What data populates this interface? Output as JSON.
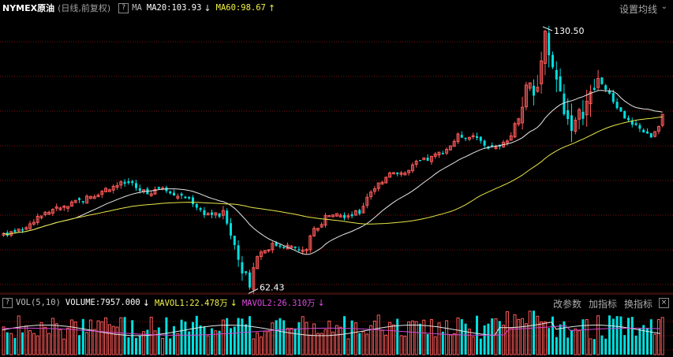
{
  "header": {
    "symbol": "NYMEX原油",
    "mode": "(日线,前复权)",
    "help_icon": "question-mark-box-icon",
    "ma_label": "MA",
    "ma20": "MA20:103.93",
    "ma20_arrow": "↓",
    "ma60": "MA60:98.67",
    "ma60_arrow": "↑",
    "settings": "设置均线"
  },
  "annotations": {
    "high": "130.50",
    "low": "62.43"
  },
  "volume_header": {
    "help_icon": "question-mark-box-icon",
    "vol_label": "VOL(5,10)",
    "volume": "VOLUME:7957.000",
    "volume_arrow": "↓",
    "mavol1": "MAVOL1:22.478万",
    "mavol1_arrow": "↓",
    "mavol2": "MAVOL2:26.310万",
    "mavol2_arrow": "↓",
    "btn_change": "改参数",
    "btn_add": "加指标",
    "btn_switch": "换指标",
    "close_icon": "close-box-icon"
  },
  "colors": {
    "up": "#ff5a5a",
    "down": "#00e0e0",
    "ma20": "#e6e6e6",
    "ma60": "#e6e64a",
    "mavol1": "#e6e6e6",
    "mavol2": "#d24ad2",
    "grid": "#7a1212"
  },
  "chart_data": {
    "type": "candlestick",
    "price_range": [
      60,
      133
    ],
    "high": 130.5,
    "low": 62.43,
    "series": [
      {
        "name": "MA20",
        "value": 103.93
      },
      {
        "name": "MA60",
        "value": 98.67
      },
      {
        "name": "VOLUME",
        "value": 7957.0
      },
      {
        "name": "MAVOL1",
        "value": "22.478万"
      },
      {
        "name": "MAVOL2",
        "value": "26.310万"
      }
    ]
  }
}
